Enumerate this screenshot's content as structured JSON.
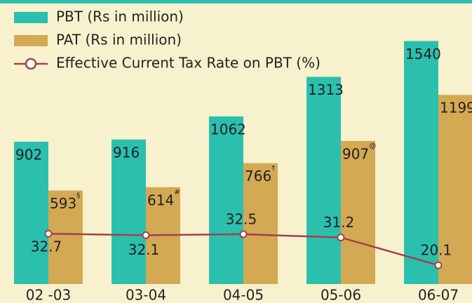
{
  "chart_data": {
    "type": "bar-line",
    "categories": [
      "02 -03",
      "03-04",
      "04-05",
      "05-06",
      "06-07"
    ],
    "series": [
      {
        "name": "PBT (Rs in million)",
        "color": "#2bbfae",
        "values": [
          902,
          916,
          1062,
          1313,
          1540
        ]
      },
      {
        "name": "PAT (Rs in million)",
        "color": "#d3a954",
        "values": [
          593,
          614,
          766,
          907,
          1199
        ],
        "footnotes": [
          "§",
          "#",
          "†",
          "@",
          "*"
        ]
      },
      {
        "name": "Effective Current Tax Rate on PBT (%)",
        "color": "#a3404c",
        "values": [
          32.7,
          32.1,
          32.5,
          31.2,
          20.1
        ],
        "axis": "y2"
      }
    ],
    "ylim": [
      0,
      1800
    ],
    "y2lim": [
      12.6,
      126
    ],
    "legend": "top-left"
  }
}
